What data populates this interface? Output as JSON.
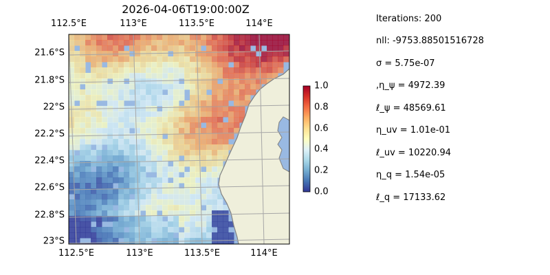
{
  "title": "2026-04-06T19:00:00Z",
  "lon_ticks": [
    "112.5°E",
    "113°E",
    "113.5°E",
    "114°E"
  ],
  "lat_ticks": [
    "21.6°S",
    "21.8°S",
    "22°S",
    "22.2°S",
    "22.4°S",
    "22.6°S",
    "22.8°S",
    "23°S"
  ],
  "colorbar": {
    "ticks": [
      "1.0",
      "0.8",
      "0.6",
      "0.4",
      "0.2",
      "0.0"
    ],
    "range": [
      0,
      1
    ],
    "colormap": "RdYlBu_r"
  },
  "colors": {
    "ocean": "#99b9e2",
    "land": "#efefdb",
    "coast": "#808080",
    "grid": "#a6a6a6"
  },
  "info": [
    "Iterations: 200",
    "nll: -9753.88501516728",
    "σ = 5.75e-07",
    ",η_ψ = 4972.39",
    "ℓ_ψ = 48569.61",
    "η_uv = 1.01e-01",
    "ℓ_uv = 10220.94",
    "η_q = 1.54e-05",
    "ℓ_q = 17133.62"
  ]
}
